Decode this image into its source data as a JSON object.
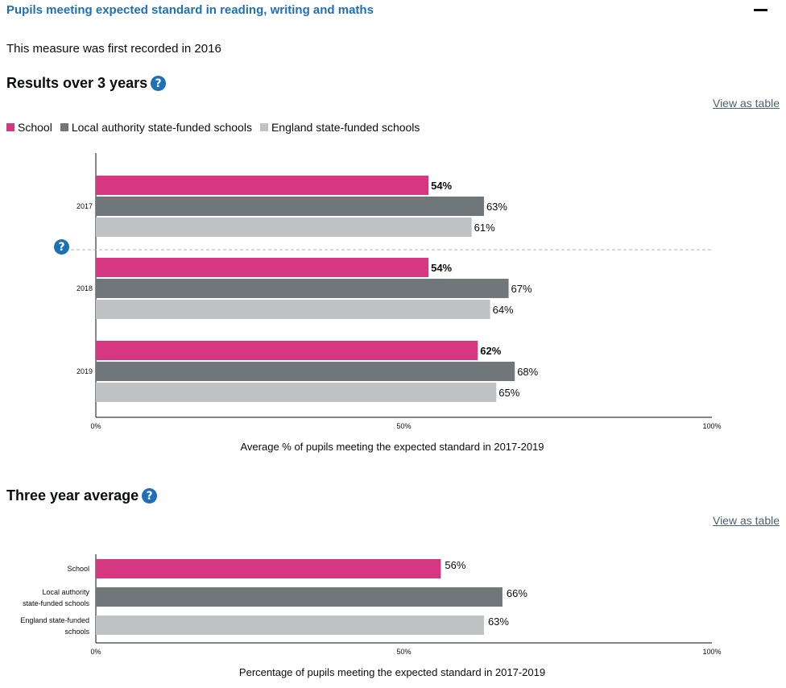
{
  "section": {
    "title": "Pupils meeting expected standard in reading, writing and maths",
    "intro": "This measure was first recorded in 2016"
  },
  "help_glyph": "?",
  "colors": {
    "school": "#d53880",
    "local_authority": "#6f777b",
    "england": "#bfc1c3",
    "link": "#1d70b8"
  },
  "results": {
    "heading": "Results over 3 years",
    "view_table": "View as table",
    "legend": [
      "School",
      "Local authority state-funded schools",
      "England state-funded schools"
    ]
  },
  "average": {
    "heading": "Three year average",
    "view_table": "View as table"
  },
  "chart_data": [
    {
      "type": "bar",
      "orientation": "horizontal",
      "categories": [
        "2017",
        "2018",
        "2019"
      ],
      "series": [
        {
          "name": "School",
          "values": [
            54,
            54,
            62
          ],
          "labels": [
            "54%",
            "54%",
            "62%"
          ]
        },
        {
          "name": "Local authority state-funded schools",
          "values": [
            63,
            67,
            68
          ],
          "labels": [
            "63%",
            "67%",
            "68%"
          ]
        },
        {
          "name": "England state-funded schools",
          "values": [
            61,
            64,
            65
          ],
          "labels": [
            "61%",
            "64%",
            "65%"
          ]
        }
      ],
      "xlabel": "Average % of pupils meeting the expected standard in 2017-2019",
      "xlim": [
        0,
        100
      ],
      "ticks": [
        "0%",
        "50%",
        "100%"
      ],
      "legend": "top-left",
      "grid": false
    },
    {
      "type": "bar",
      "orientation": "horizontal",
      "categories": [
        [
          "School"
        ],
        [
          "Local authority",
          "state-funded schools"
        ],
        [
          "England state-funded",
          "schools"
        ]
      ],
      "values": [
        56,
        66,
        63
      ],
      "labels": [
        "56%",
        "66%",
        "63%"
      ],
      "xlabel": "Percentage of pupils meeting the expected standard in 2017-2019",
      "xlim": [
        0,
        100
      ],
      "ticks": [
        "0%",
        "50%",
        "100%"
      ],
      "grid": false
    }
  ]
}
